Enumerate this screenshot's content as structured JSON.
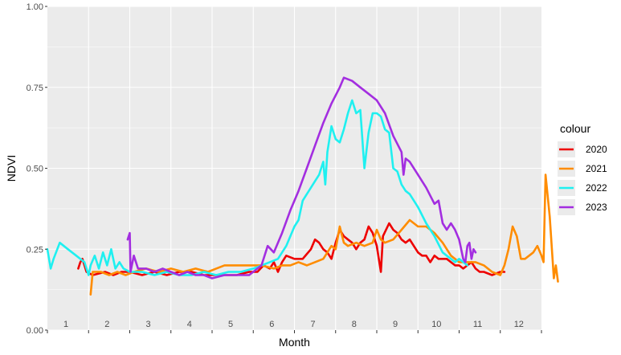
{
  "chart_data": {
    "type": "line",
    "xlabel": "Month",
    "ylabel": "NDVI",
    "xlim": [
      0,
      12
    ],
    "ylim": [
      0,
      1
    ],
    "y_ticks": [
      "0.00",
      "0.25",
      "0.50",
      "0.75",
      "1.00"
    ],
    "y_tick_values": [
      0,
      0.25,
      0.5,
      0.75,
      1
    ],
    "month_labels": [
      "1",
      "2",
      "3",
      "4",
      "5",
      "6",
      "7",
      "8",
      "9",
      "10",
      "11",
      "12"
    ],
    "grid": true,
    "legend_position": "right",
    "legend_title": "colour",
    "series": [
      {
        "name": "2020",
        "color": "#ee0000",
        "points": [
          [
            0.75,
            0.19
          ],
          [
            0.8,
            0.21
          ],
          [
            0.85,
            0.22
          ],
          [
            0.95,
            0.18
          ],
          [
            1.1,
            0.17
          ],
          [
            1.4,
            0.18
          ],
          [
            1.6,
            0.17
          ],
          [
            1.8,
            0.18
          ],
          [
            2.0,
            0.18
          ],
          [
            2.3,
            0.17
          ],
          [
            2.6,
            0.18
          ],
          [
            2.9,
            0.17
          ],
          [
            3.2,
            0.18
          ],
          [
            3.5,
            0.18
          ],
          [
            3.8,
            0.17
          ],
          [
            4.0,
            0.17
          ],
          [
            4.3,
            0.17
          ],
          [
            4.6,
            0.17
          ],
          [
            4.9,
            0.18
          ],
          [
            5.1,
            0.18
          ],
          [
            5.25,
            0.2
          ],
          [
            5.4,
            0.19
          ],
          [
            5.5,
            0.21
          ],
          [
            5.6,
            0.18
          ],
          [
            5.7,
            0.21
          ],
          [
            5.8,
            0.23
          ],
          [
            6.0,
            0.22
          ],
          [
            6.2,
            0.22
          ],
          [
            6.4,
            0.25
          ],
          [
            6.5,
            0.28
          ],
          [
            6.6,
            0.27
          ],
          [
            6.7,
            0.25
          ],
          [
            6.8,
            0.24
          ],
          [
            6.9,
            0.22
          ],
          [
            7.0,
            0.27
          ],
          [
            7.1,
            0.31
          ],
          [
            7.2,
            0.29
          ],
          [
            7.3,
            0.28
          ],
          [
            7.4,
            0.27
          ],
          [
            7.5,
            0.25
          ],
          [
            7.6,
            0.27
          ],
          [
            7.7,
            0.28
          ],
          [
            7.8,
            0.32
          ],
          [
            7.9,
            0.3
          ],
          [
            8.0,
            0.26
          ],
          [
            8.1,
            0.18
          ],
          [
            8.15,
            0.29
          ],
          [
            8.3,
            0.33
          ],
          [
            8.4,
            0.31
          ],
          [
            8.5,
            0.3
          ],
          [
            8.6,
            0.28
          ],
          [
            8.7,
            0.27
          ],
          [
            8.8,
            0.28
          ],
          [
            8.9,
            0.26
          ],
          [
            9.0,
            0.24
          ],
          [
            9.1,
            0.23
          ],
          [
            9.2,
            0.23
          ],
          [
            9.3,
            0.21
          ],
          [
            9.4,
            0.23
          ],
          [
            9.5,
            0.22
          ],
          [
            9.6,
            0.22
          ],
          [
            9.7,
            0.22
          ],
          [
            9.8,
            0.21
          ],
          [
            9.9,
            0.2
          ],
          [
            10.0,
            0.2
          ],
          [
            10.1,
            0.19
          ],
          [
            10.2,
            0.2
          ],
          [
            10.3,
            0.21
          ],
          [
            10.4,
            0.19
          ],
          [
            10.5,
            0.18
          ],
          [
            10.6,
            0.18
          ],
          [
            10.8,
            0.17
          ],
          [
            11.0,
            0.18
          ],
          [
            11.1,
            0.18
          ]
        ]
      },
      {
        "name": "2021",
        "color": "#ff8c00",
        "points": [
          [
            1.05,
            0.11
          ],
          [
            1.1,
            0.18
          ],
          [
            1.3,
            0.18
          ],
          [
            1.5,
            0.17
          ],
          [
            1.7,
            0.18
          ],
          [
            1.9,
            0.17
          ],
          [
            2.1,
            0.18
          ],
          [
            2.4,
            0.19
          ],
          [
            2.7,
            0.18
          ],
          [
            3.0,
            0.19
          ],
          [
            3.3,
            0.18
          ],
          [
            3.6,
            0.19
          ],
          [
            3.9,
            0.18
          ],
          [
            4.1,
            0.19
          ],
          [
            4.3,
            0.2
          ],
          [
            4.6,
            0.2
          ],
          [
            4.9,
            0.2
          ],
          [
            5.2,
            0.2
          ],
          [
            5.5,
            0.19
          ],
          [
            5.7,
            0.2
          ],
          [
            5.9,
            0.2
          ],
          [
            6.1,
            0.21
          ],
          [
            6.3,
            0.2
          ],
          [
            6.5,
            0.21
          ],
          [
            6.7,
            0.22
          ],
          [
            6.8,
            0.24
          ],
          [
            6.9,
            0.26
          ],
          [
            7.0,
            0.25
          ],
          [
            7.1,
            0.32
          ],
          [
            7.2,
            0.27
          ],
          [
            7.3,
            0.26
          ],
          [
            7.5,
            0.27
          ],
          [
            7.7,
            0.26
          ],
          [
            7.9,
            0.27
          ],
          [
            8.0,
            0.31
          ],
          [
            8.1,
            0.28
          ],
          [
            8.2,
            0.27
          ],
          [
            8.4,
            0.28
          ],
          [
            8.6,
            0.31
          ],
          [
            8.8,
            0.34
          ],
          [
            9.0,
            0.32
          ],
          [
            9.2,
            0.32
          ],
          [
            9.4,
            0.3
          ],
          [
            9.6,
            0.27
          ],
          [
            9.8,
            0.23
          ],
          [
            9.9,
            0.22
          ],
          [
            10.0,
            0.21
          ],
          [
            10.2,
            0.21
          ],
          [
            10.4,
            0.21
          ],
          [
            10.6,
            0.2
          ],
          [
            10.8,
            0.18
          ],
          [
            11.0,
            0.17
          ],
          [
            11.1,
            0.2
          ],
          [
            11.2,
            0.25
          ],
          [
            11.3,
            0.32
          ],
          [
            11.4,
            0.29
          ],
          [
            11.5,
            0.22
          ],
          [
            11.6,
            0.22
          ],
          [
            11.8,
            0.24
          ],
          [
            11.9,
            0.26
          ],
          [
            12.0,
            0.23
          ],
          [
            12.05,
            0.21
          ],
          [
            12.1,
            0.48
          ],
          [
            12.2,
            0.35
          ],
          [
            12.3,
            0.16
          ],
          [
            12.35,
            0.2
          ],
          [
            12.4,
            0.15
          ]
        ]
      },
      {
        "name": "2022",
        "color": "#1ff0f0",
        "points": [
          [
            0.0,
            0.25
          ],
          [
            0.08,
            0.19
          ],
          [
            0.15,
            0.22
          ],
          [
            0.3,
            0.27
          ],
          [
            0.5,
            0.25
          ],
          [
            0.7,
            0.23
          ],
          [
            0.9,
            0.21
          ],
          [
            1.0,
            0.17
          ],
          [
            1.05,
            0.2
          ],
          [
            1.15,
            0.23
          ],
          [
            1.25,
            0.19
          ],
          [
            1.35,
            0.24
          ],
          [
            1.45,
            0.2
          ],
          [
            1.55,
            0.25
          ],
          [
            1.65,
            0.19
          ],
          [
            1.75,
            0.21
          ],
          [
            1.85,
            0.19
          ],
          [
            2.0,
            0.18
          ],
          [
            2.3,
            0.18
          ],
          [
            2.6,
            0.17
          ],
          [
            2.9,
            0.18
          ],
          [
            3.2,
            0.17
          ],
          [
            3.5,
            0.17
          ],
          [
            3.8,
            0.18
          ],
          [
            4.1,
            0.17
          ],
          [
            4.4,
            0.18
          ],
          [
            4.7,
            0.18
          ],
          [
            5.0,
            0.19
          ],
          [
            5.2,
            0.2
          ],
          [
            5.4,
            0.21
          ],
          [
            5.6,
            0.22
          ],
          [
            5.8,
            0.26
          ],
          [
            6.0,
            0.32
          ],
          [
            6.1,
            0.34
          ],
          [
            6.2,
            0.4
          ],
          [
            6.3,
            0.42
          ],
          [
            6.5,
            0.46
          ],
          [
            6.6,
            0.48
          ],
          [
            6.7,
            0.52
          ],
          [
            6.75,
            0.45
          ],
          [
            6.8,
            0.55
          ],
          [
            6.9,
            0.63
          ],
          [
            7.0,
            0.59
          ],
          [
            7.1,
            0.58
          ],
          [
            7.2,
            0.62
          ],
          [
            7.3,
            0.67
          ],
          [
            7.4,
            0.71
          ],
          [
            7.5,
            0.67
          ],
          [
            7.6,
            0.68
          ],
          [
            7.7,
            0.5
          ],
          [
            7.8,
            0.61
          ],
          [
            7.9,
            0.67
          ],
          [
            8.0,
            0.67
          ],
          [
            8.1,
            0.66
          ],
          [
            8.2,
            0.62
          ],
          [
            8.3,
            0.61
          ],
          [
            8.4,
            0.5
          ],
          [
            8.5,
            0.49
          ],
          [
            8.6,
            0.45
          ],
          [
            8.7,
            0.43
          ],
          [
            8.8,
            0.42
          ],
          [
            9.0,
            0.38
          ],
          [
            9.2,
            0.33
          ],
          [
            9.4,
            0.29
          ],
          [
            9.6,
            0.24
          ],
          [
            9.7,
            0.23
          ],
          [
            9.8,
            0.22
          ],
          [
            9.9,
            0.21
          ],
          [
            10.0,
            0.22
          ],
          [
            10.1,
            0.21
          ],
          [
            10.2,
            0.2
          ]
        ]
      },
      {
        "name": "2023",
        "color": "#a32ee0",
        "points": [
          [
            1.95,
            0.28
          ],
          [
            2.0,
            0.3
          ],
          [
            2.02,
            0.18
          ],
          [
            2.1,
            0.23
          ],
          [
            2.2,
            0.19
          ],
          [
            2.4,
            0.19
          ],
          [
            2.6,
            0.18
          ],
          [
            2.8,
            0.19
          ],
          [
            3.0,
            0.18
          ],
          [
            3.2,
            0.17
          ],
          [
            3.4,
            0.18
          ],
          [
            3.6,
            0.17
          ],
          [
            3.8,
            0.17
          ],
          [
            4.0,
            0.16
          ],
          [
            4.3,
            0.17
          ],
          [
            4.6,
            0.17
          ],
          [
            4.9,
            0.17
          ],
          [
            5.2,
            0.2
          ],
          [
            5.35,
            0.26
          ],
          [
            5.5,
            0.24
          ],
          [
            5.6,
            0.27
          ],
          [
            5.7,
            0.3
          ],
          [
            5.9,
            0.37
          ],
          [
            6.1,
            0.43
          ],
          [
            6.3,
            0.5
          ],
          [
            6.5,
            0.57
          ],
          [
            6.7,
            0.64
          ],
          [
            6.9,
            0.7
          ],
          [
            7.1,
            0.75
          ],
          [
            7.2,
            0.78
          ],
          [
            7.4,
            0.77
          ],
          [
            7.6,
            0.75
          ],
          [
            7.8,
            0.73
          ],
          [
            8.0,
            0.71
          ],
          [
            8.2,
            0.67
          ],
          [
            8.4,
            0.6
          ],
          [
            8.6,
            0.55
          ],
          [
            8.65,
            0.48
          ],
          [
            8.7,
            0.53
          ],
          [
            8.8,
            0.52
          ],
          [
            9.0,
            0.48
          ],
          [
            9.2,
            0.44
          ],
          [
            9.4,
            0.39
          ],
          [
            9.5,
            0.4
          ],
          [
            9.6,
            0.33
          ],
          [
            9.7,
            0.31
          ],
          [
            9.8,
            0.33
          ],
          [
            9.9,
            0.31
          ],
          [
            10.0,
            0.28
          ],
          [
            10.1,
            0.22
          ],
          [
            10.15,
            0.21
          ],
          [
            10.2,
            0.26
          ],
          [
            10.25,
            0.27
          ],
          [
            10.3,
            0.22
          ],
          [
            10.35,
            0.25
          ],
          [
            10.4,
            0.24
          ]
        ]
      }
    ]
  }
}
